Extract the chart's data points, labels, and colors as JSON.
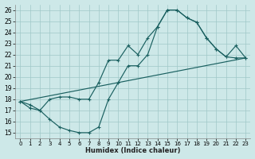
{
  "xlabel": "Humidex (Indice chaleur)",
  "xlim": [
    -0.5,
    23.5
  ],
  "ylim": [
    14.5,
    26.5
  ],
  "xticks": [
    0,
    1,
    2,
    3,
    4,
    5,
    6,
    7,
    8,
    9,
    10,
    11,
    12,
    13,
    14,
    15,
    16,
    17,
    18,
    19,
    20,
    21,
    22,
    23
  ],
  "yticks": [
    15,
    16,
    17,
    18,
    19,
    20,
    21,
    22,
    23,
    24,
    25,
    26
  ],
  "bg_color": "#cde8e8",
  "grid_color": "#a0c8c8",
  "line_color": "#1a6060",
  "line1_x": [
    0,
    1,
    2,
    3,
    4,
    5,
    6,
    7,
    8,
    9,
    10,
    11,
    12,
    13,
    14,
    15,
    16,
    17,
    18,
    19,
    20,
    21,
    22,
    23
  ],
  "line1_y": [
    17.8,
    17.5,
    17.0,
    18.0,
    18.2,
    18.2,
    18.0,
    18.0,
    19.5,
    21.5,
    21.5,
    22.8,
    22.0,
    23.5,
    24.5,
    26.0,
    26.0,
    25.3,
    24.9,
    23.5,
    22.5,
    21.8,
    21.7,
    21.7
  ],
  "line2_x": [
    0,
    1,
    2,
    3,
    4,
    5,
    6,
    7,
    8,
    9,
    10,
    11,
    12,
    13,
    14,
    15,
    16,
    17,
    18,
    19,
    20,
    21,
    22,
    23
  ],
  "line2_y": [
    17.8,
    17.2,
    17.0,
    16.2,
    15.5,
    15.2,
    15.0,
    15.0,
    15.5,
    18.0,
    19.5,
    21.0,
    21.0,
    22.0,
    24.5,
    26.0,
    26.0,
    25.3,
    24.9,
    23.5,
    22.5,
    21.8,
    22.8,
    21.7
  ],
  "line3_x": [
    0,
    23
  ],
  "line3_y": [
    17.8,
    21.7
  ]
}
